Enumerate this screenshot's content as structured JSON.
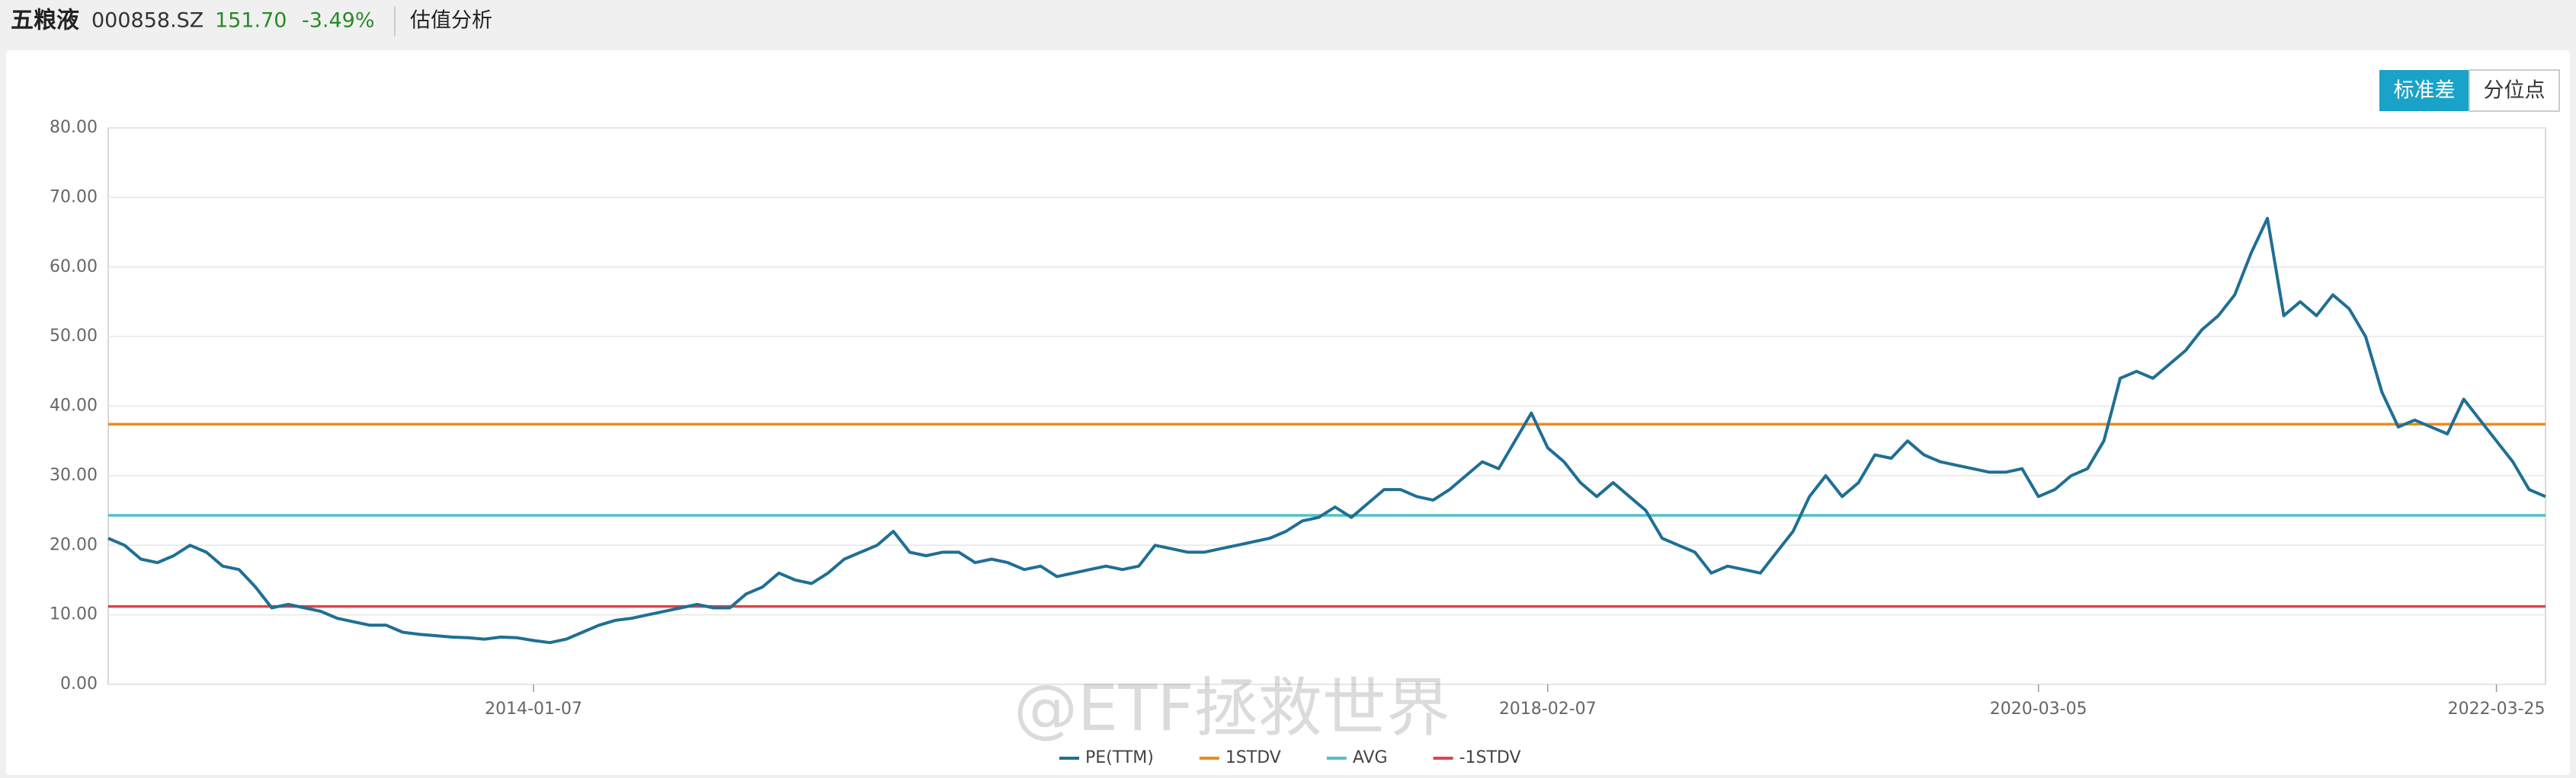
{
  "header": {
    "name": "五粮液",
    "code": "000858.SZ",
    "price": "151.70",
    "change": "-3.49%",
    "section": "估值分析"
  },
  "buttons": [
    "标准差",
    "分位点"
  ],
  "watermark": "@ETF拯救世界",
  "chart_data": {
    "type": "line",
    "categories": [
      null,
      null,
      null,
      null,
      null,
      null,
      null,
      null,
      null,
      null,
      null,
      null,
      null,
      null,
      null,
      null,
      null,
      null,
      null,
      null,
      null,
      null,
      null,
      null,
      null,
      null,
      "2014-01-07",
      null,
      null,
      null,
      null,
      null,
      null,
      null,
      null,
      null,
      null,
      null,
      null,
      null,
      null,
      null,
      null,
      null,
      null,
      null,
      null,
      null,
      null,
      null,
      null,
      null,
      null,
      null,
      null,
      null,
      null,
      null,
      null,
      null,
      null,
      null,
      null,
      null,
      null,
      null,
      null,
      null,
      null,
      null,
      null,
      null,
      null,
      null,
      null,
      null,
      null,
      null,
      null,
      null,
      null,
      null,
      null,
      null,
      null,
      null,
      null,
      null,
      "2018-02-07",
      null,
      null,
      null,
      null,
      null,
      null,
      null,
      null,
      null,
      null,
      null,
      null,
      null,
      null,
      null,
      null,
      null,
      null,
      null,
      null,
      null,
      null,
      null,
      null,
      null,
      null,
      null,
      null,
      null,
      "2020-03-05",
      null,
      null,
      null,
      null,
      null,
      null,
      null,
      null,
      null,
      null,
      null,
      null,
      null,
      null,
      null,
      null,
      null,
      null,
      null,
      null,
      null,
      null,
      null,
      null,
      null,
      null,
      null,
      "2022-03-25",
      null,
      null,
      null
    ],
    "series": [
      {
        "name": "PE(TTM)",
        "color": "#1f6f94",
        "values": [
          21,
          20,
          18,
          17.5,
          18.5,
          20,
          19,
          17,
          16.5,
          14,
          11,
          11.5,
          11,
          10.5,
          9.5,
          9,
          8.5,
          8.5,
          7.5,
          7.2,
          7,
          6.8,
          6.7,
          6.5,
          6.8,
          6.7,
          6.3,
          6,
          6.5,
          7.5,
          8.5,
          9.2,
          9.5,
          10,
          10.5,
          11,
          11.5,
          11,
          11,
          13,
          14,
          16,
          15,
          14.5,
          16,
          18,
          19,
          20,
          22,
          19,
          18.5,
          19,
          19,
          17.5,
          18,
          17.5,
          16.5,
          17,
          15.5,
          16,
          16.5,
          17,
          16.5,
          17,
          20,
          19.5,
          19,
          19,
          19.5,
          20,
          20.5,
          21,
          22,
          23.5,
          24,
          25.5,
          24,
          26,
          28,
          28,
          27,
          26.5,
          28,
          30,
          32,
          31,
          35,
          39,
          34,
          32,
          29,
          27,
          29,
          27,
          25,
          21,
          20,
          19,
          16,
          17,
          16.5,
          16,
          19,
          22,
          27,
          30,
          27,
          29,
          33,
          32.5,
          35,
          33,
          32,
          31.5,
          31,
          30.5,
          30.5,
          31,
          27,
          28,
          30,
          31,
          35,
          44,
          45,
          44,
          46,
          48,
          51,
          53,
          56,
          62,
          67,
          53,
          55,
          53,
          56,
          54,
          50,
          42,
          37,
          38,
          37,
          36,
          41,
          38,
          35,
          32,
          28,
          27
        ]
      }
    ],
    "reference_lines": [
      {
        "name": "1STDV",
        "color": "#f08a1c",
        "value": 37.4
      },
      {
        "name": "AVG",
        "color": "#4fc1c8",
        "value": 24.3
      },
      {
        "name": "-1STDV",
        "color": "#e0434c",
        "value": 11.2
      }
    ],
    "ylim": [
      0,
      80
    ],
    "yticks": [
      {
        "value": 0,
        "label": "0.00"
      },
      {
        "value": 10,
        "label": "10.00"
      },
      {
        "value": 20,
        "label": "20.00"
      },
      {
        "value": 30,
        "label": "30.00"
      },
      {
        "value": 40,
        "label": "40.00"
      },
      {
        "value": 50,
        "label": "50.00"
      },
      {
        "value": 60,
        "label": "60.00"
      },
      {
        "value": 70,
        "label": "70.00"
      },
      {
        "value": 80,
        "label": "80.00"
      }
    ],
    "grid": true
  }
}
